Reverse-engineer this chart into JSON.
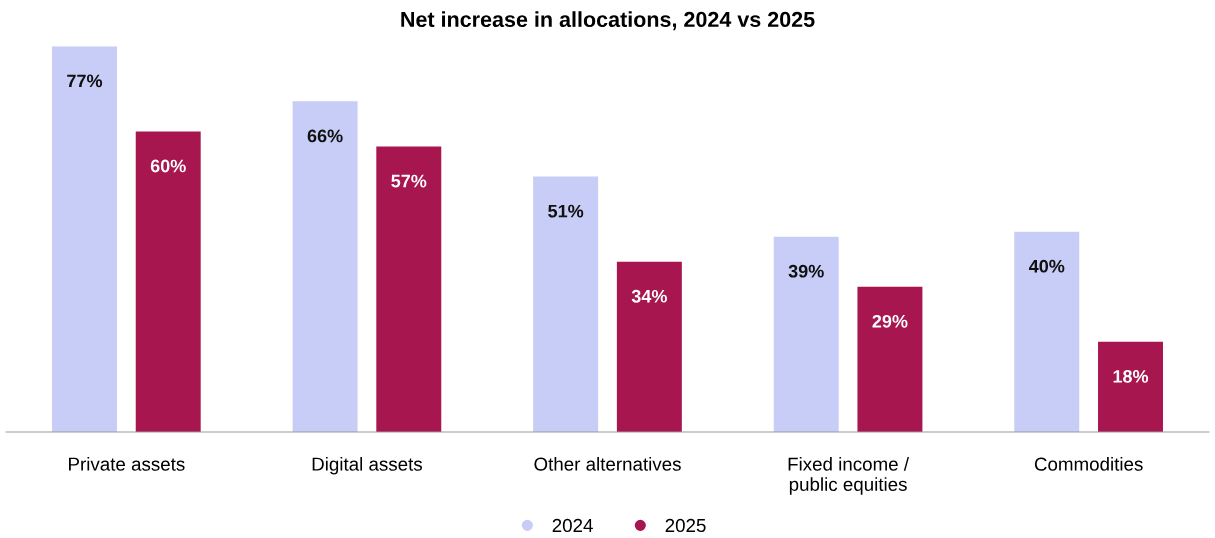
{
  "chart_data": {
    "type": "bar",
    "title": "Net increase in allocations, 2024 vs 2025",
    "categories": [
      "Private assets",
      "Digital assets",
      "Other alternatives",
      "Fixed income /\npublic equities",
      "Commodities"
    ],
    "series": [
      {
        "name": "2024",
        "color": "#c7cdf7",
        "values": [
          77,
          66,
          51,
          39,
          40
        ],
        "value_labels": [
          "77%",
          "66%",
          "51%",
          "39%",
          "40%"
        ]
      },
      {
        "name": "2025",
        "color": "#a7164f",
        "values": [
          60,
          57,
          34,
          29,
          18
        ],
        "value_labels": [
          "60%",
          "57%",
          "34%",
          "29%",
          "18%"
        ]
      }
    ],
    "tick_labels": "x",
    "legend": "bottom",
    "grid": false
  }
}
